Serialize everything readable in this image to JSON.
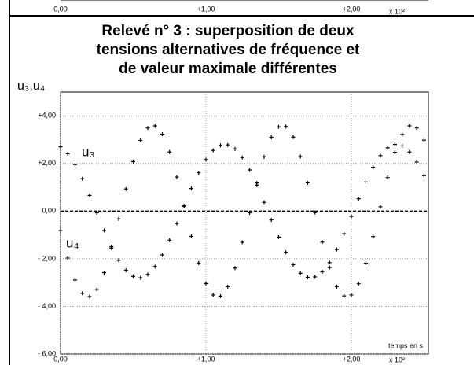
{
  "header_fragment": {
    "labels": [
      "0,00",
      "+1,00",
      "+2,00",
      "x 10²"
    ]
  },
  "chart_data": {
    "type": "scatter",
    "title": [
      "Relevé n° 3 : superposition de deux",
      "tensions alternatives de fréquence et",
      "de valeur maximale différentes"
    ],
    "ylabel": "u₃,u₄",
    "xlabel": "temps en s",
    "x_multiplier": "x 10²",
    "x": [
      0,
      0.05,
      0.1,
      0.15,
      0.2,
      0.25,
      0.3,
      0.35,
      0.4,
      0.45,
      0.5,
      0.55,
      0.6,
      0.65,
      0.7,
      0.75,
      0.8,
      0.85,
      0.9,
      0.95,
      1,
      1.05,
      1.1,
      1.15,
      1.2,
      1.25,
      1.3,
      1.35,
      1.4,
      1.45,
      1.5,
      1.55,
      1.6,
      1.65,
      1.7,
      1.75,
      1.8,
      1.85,
      1.9,
      1.95,
      2,
      2.05,
      2.1,
      2.15,
      2.2,
      2.25,
      2.3,
      2.35,
      2.4,
      2.45,
      2.5
    ],
    "series": [
      {
        "name": "u₃",
        "color": "#000000",
        "values": [
          2.7,
          2.41,
          1.95,
          1.36,
          0.66,
          -0.07,
          -0.81,
          -1.49,
          -2.06,
          -2.48,
          -2.74,
          -2.8,
          -2.66,
          -2.33,
          -1.84,
          -1.22,
          -0.52,
          0.22,
          0.95,
          1.61,
          2.16,
          2.55,
          2.76,
          2.78,
          2.61,
          2.25,
          1.73,
          1.09,
          0.37,
          -0.37,
          -1.09,
          -1.73,
          -2.25,
          -2.61,
          -2.78,
          -2.76,
          -2.55,
          -2.16,
          -1.61,
          -0.95,
          -0.22,
          0.52,
          1.22,
          1.84,
          2.33,
          2.66,
          2.8,
          2.74,
          2.48,
          2.06,
          1.49
        ]
      },
      {
        "name": "u₄",
        "color": "#000000",
        "values": [
          -0.81,
          -1.97,
          -2.89,
          -3.45,
          -3.59,
          -3.29,
          -2.58,
          -1.55,
          -0.33,
          0.93,
          2.08,
          2.97,
          3.49,
          3.58,
          3.23,
          2.48,
          1.43,
          0.2,
          -1.06,
          -2.18,
          -3.04,
          -3.52,
          -3.57,
          -3.17,
          -2.39,
          -1.31,
          -0.07,
          1.18,
          2.28,
          3.1,
          3.54,
          3.55,
          3.11,
          2.29,
          1.19,
          -0.06,
          -1.3,
          -2.37,
          -3.17,
          -3.56,
          -3.52,
          -3.05,
          -2.19,
          -1.07,
          0.18,
          1.41,
          2.47,
          3.22,
          3.58,
          3.49,
          2.98
        ]
      }
    ],
    "xlim": [
      0,
      2.53
    ],
    "ylim": [
      -6,
      5
    ],
    "xticks": [
      {
        "value": 0,
        "label": "0,00"
      },
      {
        "value": 1,
        "label": "+1,00"
      },
      {
        "value": 2,
        "label": "+2,00"
      }
    ],
    "yticks": [
      {
        "value": 4,
        "label": "+4,00"
      },
      {
        "value": 2,
        "label": "+2,00"
      },
      {
        "value": 0,
        "label": "0,00"
      },
      {
        "value": -2,
        "label": "- 2,00"
      },
      {
        "value": -4,
        "label": "- 4,00"
      },
      {
        "value": -6,
        "label": "- 6,00"
      }
    ],
    "grid": true
  }
}
